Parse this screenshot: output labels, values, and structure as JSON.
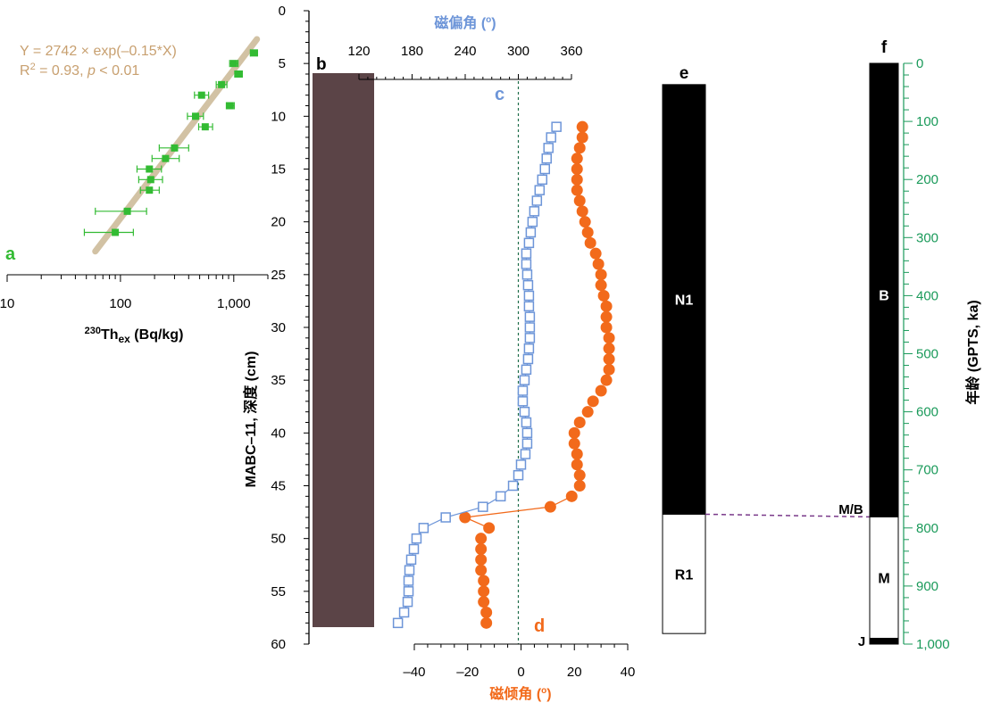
{
  "chart_data": [
    {
      "panel": "a",
      "type": "scatter",
      "xscale": "log",
      "xlim": [
        10,
        2000
      ],
      "ylim": [
        0,
        60
      ],
      "xlabel": "²³⁰Thex (Bq/kg)",
      "xlabel_main": "Th",
      "xlabel_sup": "230",
      "xlabel_sub": "ex",
      "xlabel_unit": " (Bq/kg)",
      "x_ticks": [
        10,
        100,
        1000
      ],
      "x_tick_labels": [
        "10",
        "100",
        "1,000"
      ],
      "fit_equation": "Y = 2742 × exp(–0.15*X)",
      "r2_prefix": "R",
      "r2_sup": "2",
      "r2_mid": " = 0.93, ",
      "r2_p": "p",
      "r2_tail": " < 0.01",
      "fit_line": {
        "x": [
          60,
          1600
        ],
        "y": [
          22.8,
          2.7
        ]
      },
      "points": [
        {
          "x": 1500,
          "y": 4,
          "xerr": [
            1400,
            1620
          ]
        },
        {
          "x": 1000,
          "y": 5,
          "xerr": [
            920,
            1090
          ]
        },
        {
          "x": 1100,
          "y": 6,
          "xerr": [
            1020,
            1190
          ]
        },
        {
          "x": 780,
          "y": 7,
          "xerr": [
            700,
            870
          ]
        },
        {
          "x": 520,
          "y": 8,
          "xerr": [
            450,
            600
          ]
        },
        {
          "x": 930,
          "y": 9,
          "xerr": [
            860,
            1010
          ]
        },
        {
          "x": 460,
          "y": 10,
          "xerr": [
            390,
            540
          ]
        },
        {
          "x": 560,
          "y": 11,
          "xerr": [
            490,
            650
          ]
        },
        {
          "x": 300,
          "y": 13,
          "xerr": [
            220,
            400
          ]
        },
        {
          "x": 250,
          "y": 14,
          "xerr": [
            190,
            330
          ]
        },
        {
          "x": 180,
          "y": 15,
          "xerr": [
            140,
            230
          ]
        },
        {
          "x": 185,
          "y": 16,
          "xerr": [
            145,
            235
          ]
        },
        {
          "x": 180,
          "y": 17,
          "xerr": [
            150,
            220
          ]
        },
        {
          "x": 115,
          "y": 19,
          "xerr": [
            60,
            170
          ]
        },
        {
          "x": 90,
          "y": 21,
          "xerr": [
            48,
            130
          ]
        }
      ]
    },
    {
      "panel": "c",
      "type": "line",
      "xlabel": "磁偏角 (",
      "xlabel_deg": "o",
      "xlabel_close": ")",
      "xlim": [
        120,
        360
      ],
      "x_ticks": [
        120,
        180,
        240,
        300,
        360
      ],
      "reference_line_x": 300,
      "depth": [
        11,
        12,
        13,
        14,
        15,
        16,
        17,
        18,
        19,
        20,
        21,
        22,
        23,
        24,
        25,
        26,
        27,
        28,
        29,
        30,
        31,
        32,
        33,
        34,
        35,
        36,
        37,
        38,
        39,
        40,
        41,
        42,
        43,
        44,
        45,
        46,
        47,
        48,
        49,
        50,
        51,
        52,
        53,
        54,
        55,
        56,
        57,
        58
      ],
      "declination": [
        343,
        337,
        334,
        332,
        330,
        327,
        324,
        321,
        318,
        316,
        314,
        312,
        309,
        309,
        310,
        311,
        312,
        312,
        313,
        313,
        313,
        312,
        311,
        309,
        307,
        305,
        305,
        307,
        309,
        310,
        310,
        308,
        303,
        300,
        294,
        280,
        260,
        218,
        193,
        185,
        182,
        179,
        177,
        176,
        176,
        175,
        171,
        164
      ]
    },
    {
      "panel": "d",
      "type": "scatter",
      "xlabel": "磁倾角 (",
      "xlabel_deg": "o",
      "xlabel_close": ")",
      "xlim": [
        -50,
        40
      ],
      "x_ticks": [
        -40,
        -20,
        0,
        20,
        40
      ],
      "x_tick_labels": [
        "–40",
        "–20",
        "0",
        "20",
        "40"
      ],
      "depth": [
        11,
        12,
        13,
        14,
        15,
        16,
        17,
        18,
        19,
        20,
        21,
        22,
        23,
        24,
        25,
        26,
        27,
        28,
        29,
        30,
        31,
        32,
        33,
        34,
        35,
        36,
        37,
        38,
        39,
        40,
        41,
        42,
        43,
        44,
        45,
        46,
        47,
        48,
        49,
        50,
        51,
        52,
        53,
        54,
        55,
        56,
        57,
        58
      ],
      "inclination": [
        23,
        23,
        22,
        21,
        21,
        21,
        21,
        22,
        23,
        24,
        25,
        26,
        28,
        29,
        30,
        30,
        31,
        32,
        32,
        32,
        33,
        33,
        33,
        33,
        32,
        30,
        27,
        25,
        22,
        20,
        20,
        21,
        21,
        22,
        22,
        19,
        11,
        -21,
        -12,
        -15,
        -15,
        -15,
        -15,
        -14,
        -14,
        -14,
        -13,
        -13
      ],
      "transition_line_depths": [
        46,
        47,
        48,
        49
      ]
    },
    {
      "panel": "depth-axis",
      "type": "axis",
      "ylabel": "MABC–11, 深度 (cm)",
      "ylim": [
        0,
        60
      ],
      "y_ticks": [
        0,
        5,
        10,
        15,
        20,
        25,
        30,
        35,
        40,
        45,
        50,
        55,
        60
      ]
    },
    {
      "panel": "e",
      "type": "polarity_column",
      "depth_range": [
        7,
        59
      ],
      "zones": [
        {
          "name": "N1",
          "from": 7,
          "to": 47.7,
          "fill": "#000000"
        },
        {
          "name": "R1",
          "from": 47.7,
          "to": 59,
          "fill": "#ffffff"
        }
      ]
    },
    {
      "panel": "f",
      "type": "polarity_column",
      "ylabel": "年龄 (GPTS, ka)",
      "ylim": [
        0,
        1000
      ],
      "y_ticks": [
        0,
        100,
        200,
        300,
        400,
        500,
        600,
        700,
        800,
        900,
        1000
      ],
      "y_tick_labels": [
        "0",
        "100",
        "200",
        "300",
        "400",
        "500",
        "600",
        "700",
        "800",
        "900",
        "1,000"
      ],
      "zones": [
        {
          "name": "B",
          "from": 0,
          "to": 781,
          "fill": "#000000"
        },
        {
          "name": "M",
          "from": 781,
          "to": 990,
          "fill": "#ffffff"
        },
        {
          "name": "J",
          "from": 990,
          "to": 1000,
          "fill": "#000000"
        }
      ],
      "boundary_label": "M/B",
      "boundary_age": 781,
      "correlated_depth": 47.7
    }
  ],
  "panel_labels": {
    "a": "a",
    "b": "b",
    "c": "c",
    "d": "d",
    "e": "e",
    "f": "f"
  },
  "colors": {
    "panel_a_points": "#33bb33",
    "panel_a_fit": "#d2c2a4",
    "panel_a_text": "#c8a070",
    "declination": "#6d95d8",
    "inclination": "#f26a1b",
    "reference_line": "#1f6e4a",
    "age_axis": "#1a9a5a",
    "core_photo": "#5b4447",
    "correlation_line": "#7a3a8a"
  }
}
